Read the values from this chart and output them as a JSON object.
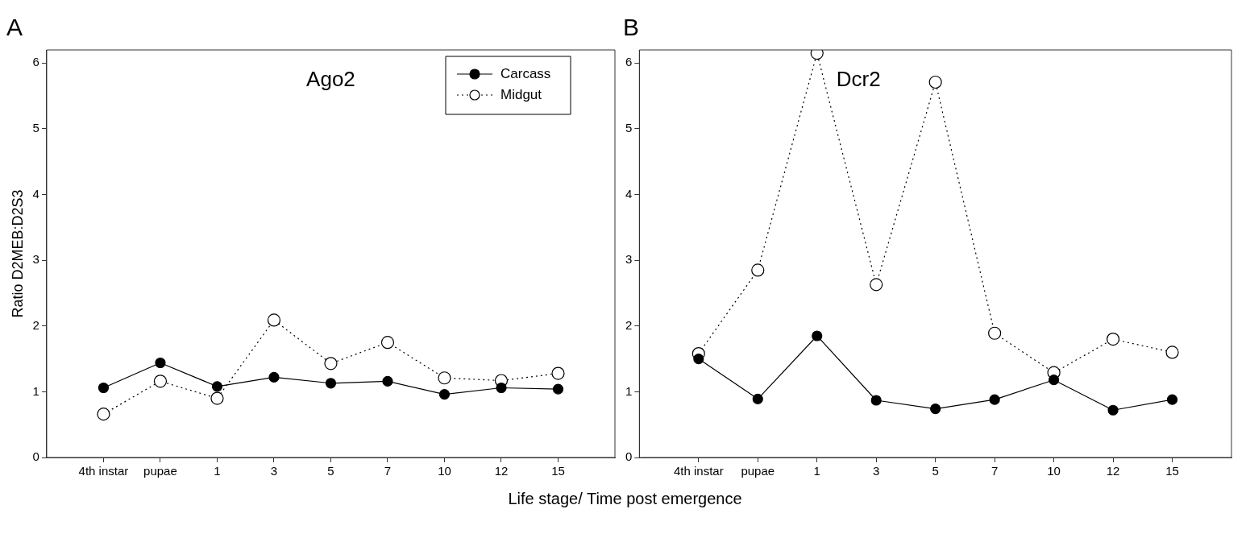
{
  "chart_data": [
    {
      "type": "line",
      "title": "A",
      "annotations": [
        "Ago2"
      ],
      "xlabel": "Life stage/ Time post emergence",
      "ylabel": "Ratio D2MEB:D2S3",
      "categories": [
        "4th instar",
        "pupae",
        "1",
        "3",
        "5",
        "7",
        "10",
        "12",
        "15"
      ],
      "ylim": [
        0,
        6.2
      ],
      "yticks": [
        0,
        1,
        2,
        3,
        4,
        5,
        6
      ],
      "grid": false,
      "legend": "top right",
      "marker": "circle",
      "series": [
        {
          "name": "Carcass",
          "color": "#000000",
          "line_style": "solid",
          "values": [
            1.06,
            1.44,
            1.08,
            1.22,
            1.13,
            1.16,
            0.96,
            1.06,
            1.04
          ]
        },
        {
          "name": "Midgut",
          "color": "#000000",
          "line_style": "dotted",
          "values": [
            0.66,
            1.16,
            0.9,
            2.09,
            1.43,
            1.75,
            1.21,
            1.17,
            1.28
          ]
        }
      ]
    },
    {
      "type": "line",
      "title": "B",
      "annotations": [
        "Dcr2"
      ],
      "categories": [
        "4th instar",
        "pupae",
        "1",
        "3",
        "5",
        "7",
        "10",
        "12",
        "15"
      ],
      "ylim": [
        0,
        6.2
      ],
      "yticks": [
        0,
        1,
        2,
        3,
        4,
        5,
        6
      ],
      "grid": false,
      "legend": false,
      "marker": "circle",
      "series": [
        {
          "color": "#000000",
          "line_style": "solid",
          "values": [
            1.5,
            0.89,
            1.85,
            0.87,
            0.74,
            0.88,
            1.18,
            0.72,
            0.88
          ]
        },
        {
          "color": "#000000",
          "line_style": "dotted",
          "values": [
            1.58,
            2.85,
            6.15,
            2.63,
            5.71,
            1.89,
            1.29,
            1.8,
            1.6
          ]
        }
      ]
    }
  ]
}
